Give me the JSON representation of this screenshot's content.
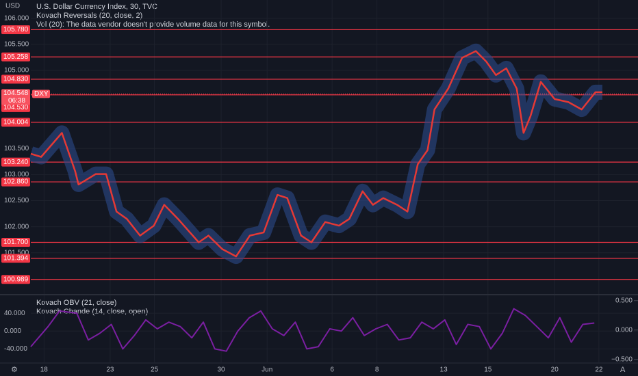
{
  "chart_data": [
    {
      "type": "line",
      "title": "U.S. Dollar Currency Index, 30, TVC",
      "annotations": [
        "Kovach Reversals (20, close, 2)",
        "Vol (20): The data vendor doesn't provide volume data for this symbol."
      ],
      "y_label": "USD",
      "xlim": [
        0,
        105.6
      ],
      "xticks": [
        {
          "value": 2.3,
          "label": "18"
        },
        {
          "value": 13.8,
          "label": "23"
        },
        {
          "value": 21.5,
          "label": "25"
        },
        {
          "value": 33.1,
          "label": "30"
        },
        {
          "value": 41.1,
          "label": "Jun"
        },
        {
          "value": 52.4,
          "label": "6"
        },
        {
          "value": 60.2,
          "label": "8"
        },
        {
          "value": 71.8,
          "label": "13"
        },
        {
          "value": 79.5,
          "label": "15"
        },
        {
          "value": 91.1,
          "label": "20"
        },
        {
          "value": 98.8,
          "label": "22"
        }
      ],
      "ylim": [
        100.71,
        106.35
      ],
      "yticks": [
        {
          "value": 101.5,
          "label": "101.500"
        },
        {
          "value": 102,
          "label": "102.000"
        },
        {
          "value": 102.5,
          "label": "102.500"
        },
        {
          "value": 103,
          "label": "103.000"
        },
        {
          "value": 103.5,
          "label": "103.500"
        },
        {
          "value": 105,
          "label": "105.000"
        },
        {
          "value": 105.5,
          "label": "105.500"
        },
        {
          "value": 106,
          "label": "106.000"
        }
      ],
      "grid": true,
      "levels": [
        {
          "value": 105.78,
          "label": "105.780"
        },
        {
          "value": 105.258,
          "label": "105.258"
        },
        {
          "value": 104.83,
          "label": "104.830"
        },
        {
          "value": 104.53,
          "label": "104.530"
        },
        {
          "value": 104.004,
          "label": "104.004"
        },
        {
          "value": 103.24,
          "label": "103.240"
        },
        {
          "value": 102.86,
          "label": "102.860"
        },
        {
          "value": 101.7,
          "label": "101.700"
        },
        {
          "value": 101.394,
          "label": "101.394"
        },
        {
          "value": 100.989,
          "label": "100.989"
        }
      ],
      "level_color": "#f23645",
      "last_price": {
        "value": 104.548,
        "symbol": "DXY",
        "countdown": "06:38"
      },
      "series": [
        {
          "color": "#e53935",
          "band_color": "#2b4a8a",
          "x": [
            0,
            1.8,
            5.4,
            7.7,
            8.3,
            11.3,
            13.1,
            14.9,
            16.7,
            19.0,
            21.4,
            23.2,
            25.6,
            29.2,
            30.9,
            33.3,
            35.7,
            38.1,
            40.5,
            42.9,
            44.6,
            47.0,
            48.8,
            51.2,
            53.6,
            55.4,
            57.7,
            59.5,
            61.3,
            63.7,
            65.5,
            67.3,
            69.0,
            70.2,
            72.6,
            75.0,
            77.4,
            79.2,
            80.9,
            82.7,
            84.5,
            85.7,
            86.9,
            88.7,
            91.1,
            93.5,
            95.8,
            98.2,
            99.4
          ],
          "values": [
            103.4,
            103.34,
            103.8,
            103.07,
            102.81,
            103.01,
            103.01,
            102.29,
            102.15,
            101.83,
            102.02,
            102.42,
            102.15,
            101.7,
            101.83,
            101.57,
            101.43,
            101.83,
            101.89,
            102.61,
            102.55,
            101.83,
            101.7,
            102.09,
            102.02,
            102.15,
            102.68,
            102.42,
            102.55,
            102.42,
            102.29,
            103.2,
            103.47,
            104.25,
            104.65,
            105.24,
            105.37,
            105.17,
            104.91,
            105.04,
            104.65,
            103.8,
            104.12,
            104.78,
            104.45,
            104.39,
            104.25,
            104.58,
            104.58
          ]
        }
      ]
    },
    {
      "type": "line",
      "annotations": [
        "Kovach OBV (21, close)",
        "Kovach Chande (14, close, open)"
      ],
      "ylim": [
        -70,
        80
      ],
      "yticks": [
        {
          "value": 40,
          "label": "40.000"
        },
        {
          "value": 0,
          "label": "0.000"
        },
        {
          "value": -40,
          "label": "-40.000"
        }
      ],
      "y2lim": [
        -0.55,
        0.59
      ],
      "y2ticks": [
        {
          "value": 0.5,
          "label": "0.500"
        },
        {
          "value": 0,
          "label": "0.000"
        },
        {
          "value": -0.5,
          "label": "−0.500"
        }
      ],
      "series": [
        {
          "color": "#7b1fa2",
          "x": [
            0,
            3,
            5,
            8,
            10,
            12,
            14,
            16,
            18,
            20,
            22,
            24,
            26,
            28,
            30,
            32,
            34,
            36,
            38,
            40,
            42,
            44,
            46,
            48,
            50,
            52,
            54,
            56,
            58,
            60,
            62,
            64,
            66,
            68,
            70,
            72,
            74,
            76,
            78,
            80,
            82,
            84,
            86,
            88,
            90,
            92,
            94,
            96,
            98
          ],
          "values": [
            -35,
            10,
            45,
            40,
            -20,
            -5,
            15,
            -40,
            -10,
            25,
            5,
            20,
            10,
            -15,
            20,
            -40,
            -45,
            0,
            30,
            45,
            5,
            -10,
            20,
            -40,
            -35,
            5,
            0,
            30,
            -10,
            5,
            15,
            -20,
            -15,
            20,
            5,
            25,
            -30,
            15,
            10,
            -40,
            -5,
            50,
            35,
            10,
            -15,
            30,
            -25,
            15,
            18
          ]
        }
      ]
    }
  ]
}
